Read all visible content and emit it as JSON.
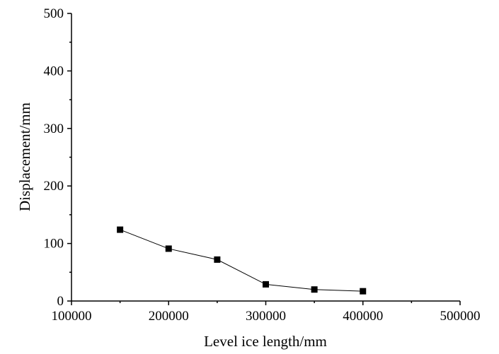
{
  "chart_data": {
    "type": "line",
    "title": "",
    "xlabel": "Level ice length/mm",
    "ylabel": "Displacement/mm",
    "xlim": [
      100000,
      500000
    ],
    "ylim": [
      0,
      500
    ],
    "xticks": [
      "100000",
      "200000",
      "300000",
      "400000",
      "500000"
    ],
    "yticks": [
      "0",
      "100",
      "200",
      "300",
      "400",
      "500"
    ],
    "grid": false,
    "legend": "none",
    "series": [
      {
        "marker": "square",
        "color": "#000000",
        "x": [
          150000,
          200000,
          250000,
          300000,
          350000,
          400000
        ],
        "y": [
          124,
          91,
          72,
          29,
          20,
          17
        ]
      }
    ]
  }
}
